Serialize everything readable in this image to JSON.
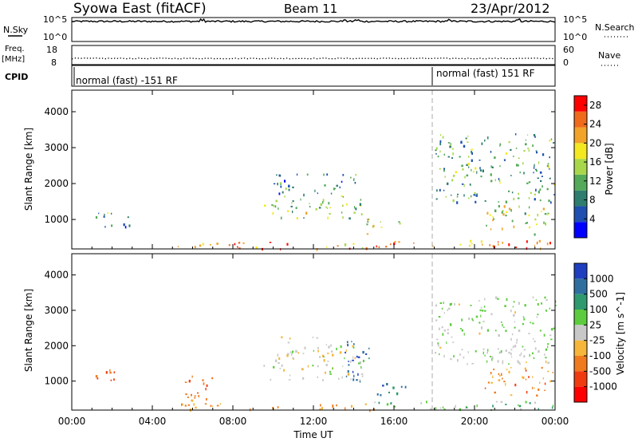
{
  "header": {
    "title": "Syowa East (fitACF)",
    "beam": "Beam 11",
    "date": "23/Apr/2012"
  },
  "nsky_panel": {
    "left_label": "N.Sky",
    "left_ticks": [
      "10^5",
      "10^0"
    ],
    "right_label": "N.Search",
    "right_ticks": [
      "10^5",
      "10^0"
    ]
  },
  "freq_panel": {
    "left_label_top": "Freq.",
    "left_label_unit": "[MHz]",
    "left_ticks": [
      "18",
      "8"
    ],
    "right_label": "Nave",
    "right_ticks": [
      "60",
      "0"
    ]
  },
  "cpid_panel": {
    "label": "CPID",
    "programs": [
      {
        "name": "normal (fast) -151 RF",
        "start_hour": 0
      },
      {
        "name": "normal (fast) 151 RF",
        "start_hour": 18
      }
    ]
  },
  "power_panel": {
    "ylabel": "Slant Range [km]",
    "colorbar_label": "Power [dB]"
  },
  "velocity_panel": {
    "ylabel": "Slant Range [km]",
    "colorbar_label": "Velocity [m s^-1]"
  },
  "x_axis": {
    "label": "Time UT"
  },
  "chart_data": [
    {
      "type": "line",
      "name": "sky-noise",
      "x_range_hours": [
        0,
        24
      ],
      "y_scale": "log",
      "ylim": [
        1,
        100000
      ],
      "level_log10": 4.2,
      "spike_hours": [
        6.5,
        13.5,
        14.2,
        18.8,
        22.2
      ]
    },
    {
      "type": "scatter",
      "name": "frequency",
      "x_range_hours": [
        0,
        24
      ],
      "ylim": [
        8,
        18
      ],
      "frequency_mhz": 11.5,
      "nave": 24
    },
    {
      "type": "heatmap",
      "name": "power",
      "x_label": "Time UT",
      "y_label": "Slant Range [km]",
      "x_ticks": [
        "00:00",
        "04:00",
        "08:00",
        "12:00",
        "16:00",
        "20:00",
        "00:00"
      ],
      "x_tick_hours": [
        0,
        4,
        8,
        12,
        16,
        20,
        24
      ],
      "y_ticks": [
        1000,
        2000,
        3000,
        4000
      ],
      "ylim": [
        180,
        4600
      ],
      "colorbar": {
        "label": "Power [dB]",
        "ticks": [
          4,
          8,
          12,
          16,
          20,
          24,
          28
        ],
        "range": [
          0,
          30
        ],
        "colors": [
          "#0000ff",
          "#1f4fb0",
          "#2e7d6e",
          "#55aa5a",
          "#a8d84a",
          "#f4e820",
          "#f2a32a",
          "#f06a1c",
          "#ff0000"
        ]
      },
      "echo_regions": [
        {
          "t0": 5.0,
          "t1": 15.0,
          "r0": 200,
          "r1": 380,
          "level": 0.8
        },
        {
          "t0": 15.0,
          "t1": 24.0,
          "r0": 200,
          "r1": 450,
          "level": 0.85
        },
        {
          "t0": 1.1,
          "t1": 2.1,
          "r0": 750,
          "r1": 1350,
          "level": 0.4
        },
        {
          "t0": 2.4,
          "t1": 3.3,
          "r0": 800,
          "r1": 1100,
          "level": 0.3
        },
        {
          "t0": 9.5,
          "t1": 14.5,
          "r0": 1050,
          "r1": 1700,
          "level": 0.45
        },
        {
          "t0": 10.0,
          "t1": 14.2,
          "r0": 1700,
          "r1": 2300,
          "level": 0.25
        },
        {
          "t0": 14.6,
          "t1": 16.4,
          "r0": 600,
          "r1": 1050,
          "level": 0.6
        },
        {
          "t0": 20.5,
          "t1": 24.0,
          "r0": 600,
          "r1": 1400,
          "level": 0.55
        },
        {
          "t0": 18.0,
          "t1": 24.0,
          "r0": 1500,
          "r1": 3400,
          "level": 0.35
        }
      ]
    },
    {
      "type": "heatmap",
      "name": "velocity",
      "x_label": "Time UT",
      "y_label": "Slant Range [km]",
      "x_ticks": [
        "00:00",
        "04:00",
        "08:00",
        "12:00",
        "16:00",
        "20:00",
        "00:00"
      ],
      "x_tick_hours": [
        0,
        4,
        8,
        12,
        16,
        20,
        24
      ],
      "y_ticks": [
        1000,
        2000,
        3000,
        4000
      ],
      "ylim": [
        180,
        4600
      ],
      "colorbar": {
        "label": "Velocity [m s^-1]",
        "ticks": [
          "1000",
          "500",
          "100",
          "25",
          "-25",
          "-100",
          "-500",
          "-1000"
        ],
        "colors": [
          "#1f3fc0",
          "#2e6fa0",
          "#2f9a6e",
          "#5ccc3e",
          "#c8c8c8",
          "#f5b63a",
          "#f07a1e",
          "#f03b10",
          "#ff0000"
        ]
      },
      "echo_regions": [
        {
          "t0": 5.0,
          "t1": 15.0,
          "r0": 200,
          "r1": 380,
          "level": -0.4
        },
        {
          "t0": 15.0,
          "t1": 24.0,
          "r0": 200,
          "r1": 450,
          "level": 0.2
        },
        {
          "t0": 1.1,
          "t1": 2.1,
          "r0": 750,
          "r1": 1350,
          "level": -0.6
        },
        {
          "t0": 5.5,
          "t1": 7.0,
          "r0": 200,
          "r1": 1200,
          "level": -0.55
        },
        {
          "t0": 9.5,
          "t1": 14.5,
          "r0": 1050,
          "r1": 1700,
          "level": 0.0
        },
        {
          "t0": 10.0,
          "t1": 14.2,
          "r0": 1700,
          "r1": 2300,
          "level": 0.0
        },
        {
          "t0": 13.5,
          "t1": 14.8,
          "r0": 1000,
          "r1": 2200,
          "level": 0.8
        },
        {
          "t0": 15.0,
          "t1": 16.6,
          "r0": 600,
          "r1": 1000,
          "level": 0.75
        },
        {
          "t0": 20.5,
          "t1": 24.0,
          "r0": 600,
          "r1": 1400,
          "level": -0.45
        },
        {
          "t0": 18.0,
          "t1": 24.0,
          "r0": 1500,
          "r1": 3400,
          "level": 0.1
        }
      ]
    }
  ]
}
